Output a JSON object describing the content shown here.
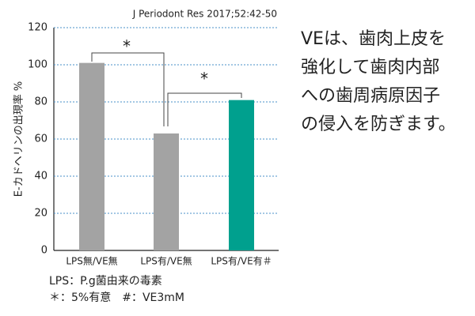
{
  "chart_data": {
    "type": "bar",
    "source": "J Periodont Res 2017;52:42-50",
    "y_label": "E-カドヘリンの出現率 %",
    "categories": [
      "LPS無/VE無",
      "LPS有/VE無",
      "LPS有/VE有＃"
    ],
    "values": [
      101,
      63,
      81
    ],
    "colors": [
      "#a3a3a3",
      "#a3a3a3",
      "#00a08e"
    ],
    "ylim": [
      0,
      120
    ],
    "yticks": [
      0,
      20,
      40,
      60,
      80,
      100,
      120
    ],
    "grid": true,
    "significance": [
      "*",
      "*"
    ],
    "notes": [
      "LPS：P.g菌由来の毒素",
      "＊：5%有意　#：VE3mM"
    ],
    "side_text": [
      "VEは、歯肉上皮を",
      "強化して歯肉内部",
      "への歯周病原因子",
      "の侵入を防ぎます。"
    ]
  }
}
